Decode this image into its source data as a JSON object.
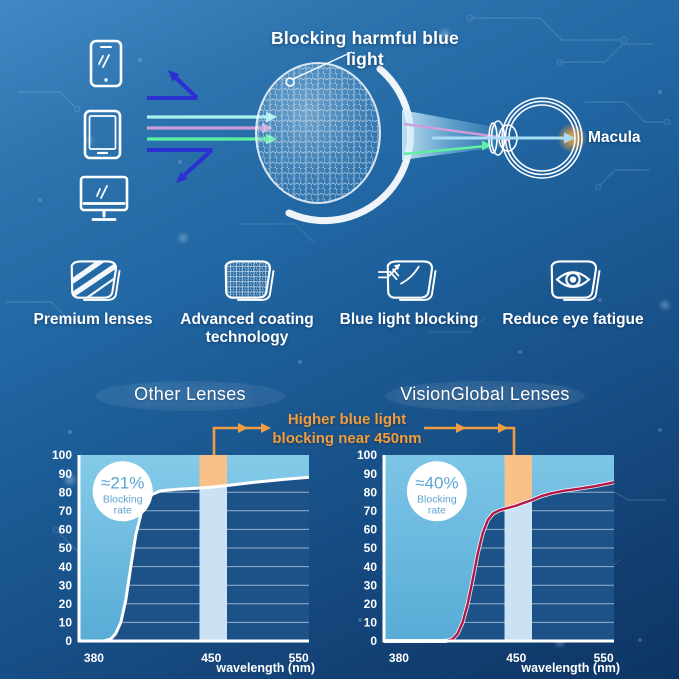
{
  "hero": {
    "title": "Blocking harmful blue light",
    "macula_label": "Macula",
    "device_icons": [
      "smartphone-icon",
      "tablet-icon",
      "monitor-icon"
    ],
    "ray_colors": {
      "cyan": "#a9f2ef",
      "pink": "#cf9bd6",
      "green": "#5ef0a2",
      "reflected_blue": "#2b30d2"
    }
  },
  "features": [
    {
      "icon": "premium-lens-icon",
      "label": "Premium lenses"
    },
    {
      "icon": "coated-lens-icon",
      "label": "Advanced coating technology"
    },
    {
      "icon": "blue-light-blocking-lens-icon",
      "label": "Blue light blocking"
    },
    {
      "icon": "eye-comfort-lens-icon",
      "label": "Reduce eye fatigue"
    }
  ],
  "comparison": {
    "annotation": {
      "line1": "Higher blue light",
      "line2": "blocking near 450nm",
      "color": "#ef9d40"
    }
  },
  "colors": {
    "background_top": "#4189c4",
    "background_bottom": "#0d3563",
    "accent_orange": "#ee9b3f",
    "band_highlight": "#f8c189",
    "band_pale": "#cbe2f5"
  },
  "chart_data": [
    {
      "type": "area",
      "title": "Other Lenses",
      "xlabel": "wavelength (nm)",
      "x_ticks": [
        {
          "nm": 380,
          "label": "380"
        },
        {
          "nm": 450,
          "label": "450"
        },
        {
          "nm": 550,
          "label": "550"
        }
      ],
      "y_ticks": [
        0,
        10,
        20,
        30,
        40,
        50,
        60,
        70,
        80,
        90,
        100
      ],
      "ylim": [
        0,
        100
      ],
      "x_range_nm": [
        370,
        562
      ],
      "band_nm": [
        443,
        468
      ],
      "band_center_label_nm": 450,
      "badge": {
        "value": "≈21%",
        "label": "Blocking rate"
      },
      "badge_x_frac": 0.19,
      "badge_color": "#5ba4d4",
      "curve_color": "#ffffff",
      "curve_width": 3,
      "curve_underlay": false,
      "area_color_top": "#85cbe9",
      "area_color_bottom": "#58acd6",
      "plot_bg": "#1d5288",
      "grid_color": "rgba(230,242,252,0.6)",
      "axis_color": "#ffffff",
      "band_color": "#cbe2f5",
      "band_highlight_color": "#f8c189",
      "points": [
        [
          370,
          0
        ],
        [
          386,
          0
        ],
        [
          390,
          1
        ],
        [
          393,
          4
        ],
        [
          396,
          10
        ],
        [
          399,
          22
        ],
        [
          402,
          40
        ],
        [
          405,
          57
        ],
        [
          408,
          68
        ],
        [
          411,
          75
        ],
        [
          415,
          79
        ],
        [
          420,
          80.8
        ],
        [
          430,
          81.6
        ],
        [
          443,
          82.2
        ],
        [
          455,
          82.9
        ],
        [
          468,
          83.6
        ],
        [
          500,
          85.3
        ],
        [
          530,
          86.8
        ],
        [
          562,
          88
        ]
      ]
    },
    {
      "type": "area",
      "title": "VisionGlobal Lenses",
      "xlabel": "wavelength (nm)",
      "x_ticks": [
        {
          "nm": 380,
          "label": "380"
        },
        {
          "nm": 450,
          "label": "450"
        },
        {
          "nm": 550,
          "label": "550"
        }
      ],
      "y_ticks": [
        0,
        10,
        20,
        30,
        40,
        50,
        60,
        70,
        80,
        90,
        100
      ],
      "ylim": [
        0,
        100
      ],
      "x_range_nm": [
        370,
        562
      ],
      "band_nm": [
        443,
        468
      ],
      "band_center_label_nm": 450,
      "badge": {
        "value": "≈40%",
        "label": "Blocking rate"
      },
      "badge_x_frac": 0.23,
      "badge_color": "#5ba4d4",
      "curve_color": "#b2184a",
      "curve_width": 2.4,
      "curve_underlay": true,
      "area_color_top": "#7cc5e6",
      "area_color_bottom": "#58acd6",
      "plot_bg": "#1d5288",
      "grid_color": "rgba(230,242,252,0.6)",
      "axis_color": "#ffffff",
      "band_color": "#cbe2f5",
      "band_highlight_color": "#f8c189",
      "points": [
        [
          370,
          0
        ],
        [
          408,
          0
        ],
        [
          412,
          1
        ],
        [
          415,
          4
        ],
        [
          418,
          10
        ],
        [
          421,
          20
        ],
        [
          424,
          33
        ],
        [
          427,
          47
        ],
        [
          430,
          58
        ],
        [
          433,
          65
        ],
        [
          436,
          68.5
        ],
        [
          440,
          70.3
        ],
        [
          444,
          71.3
        ],
        [
          450,
          72.8
        ],
        [
          457,
          74
        ],
        [
          468,
          75.8
        ],
        [
          478,
          77.8
        ],
        [
          490,
          79.4
        ],
        [
          505,
          80.8
        ],
        [
          520,
          81.8
        ],
        [
          540,
          83.2
        ],
        [
          562,
          85.3
        ]
      ]
    }
  ]
}
